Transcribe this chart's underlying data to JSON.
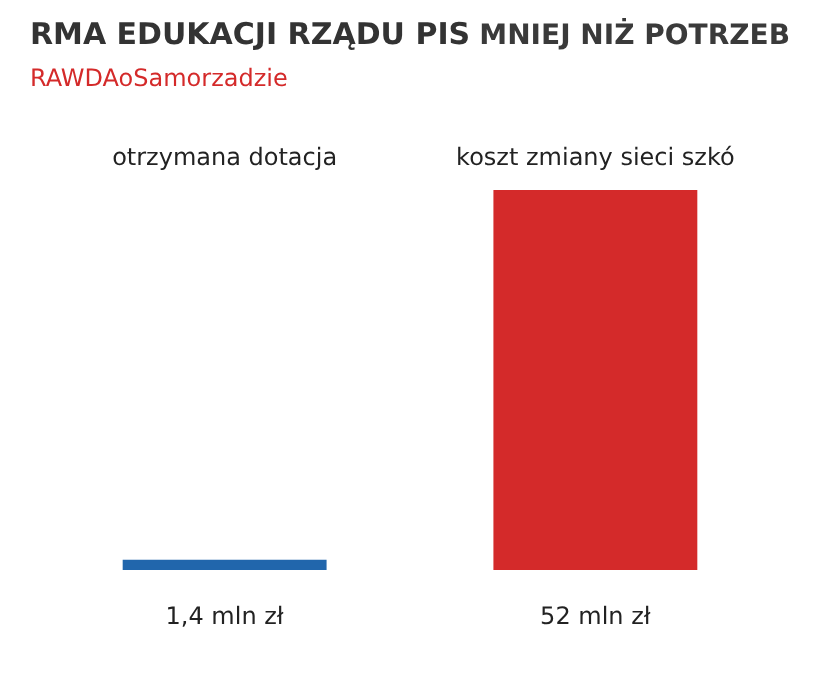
{
  "chart_data": {
    "type": "bar",
    "title": "RMA EDUKACJI RZĄDU PIS",
    "subtitle": "RAWDAoSamorzadzie",
    "annotations": [
      "MNIEJ NIŻ POTRZEB"
    ],
    "categories": [
      "otrzymana dotacja",
      "koszt zmiany sieci szkó"
    ],
    "values": [
      1.4,
      52
    ],
    "colors": [
      "#2166ac",
      "#d42a2a"
    ],
    "value_labels": [
      "1,4 mln zł",
      "52 mln zł"
    ]
  }
}
